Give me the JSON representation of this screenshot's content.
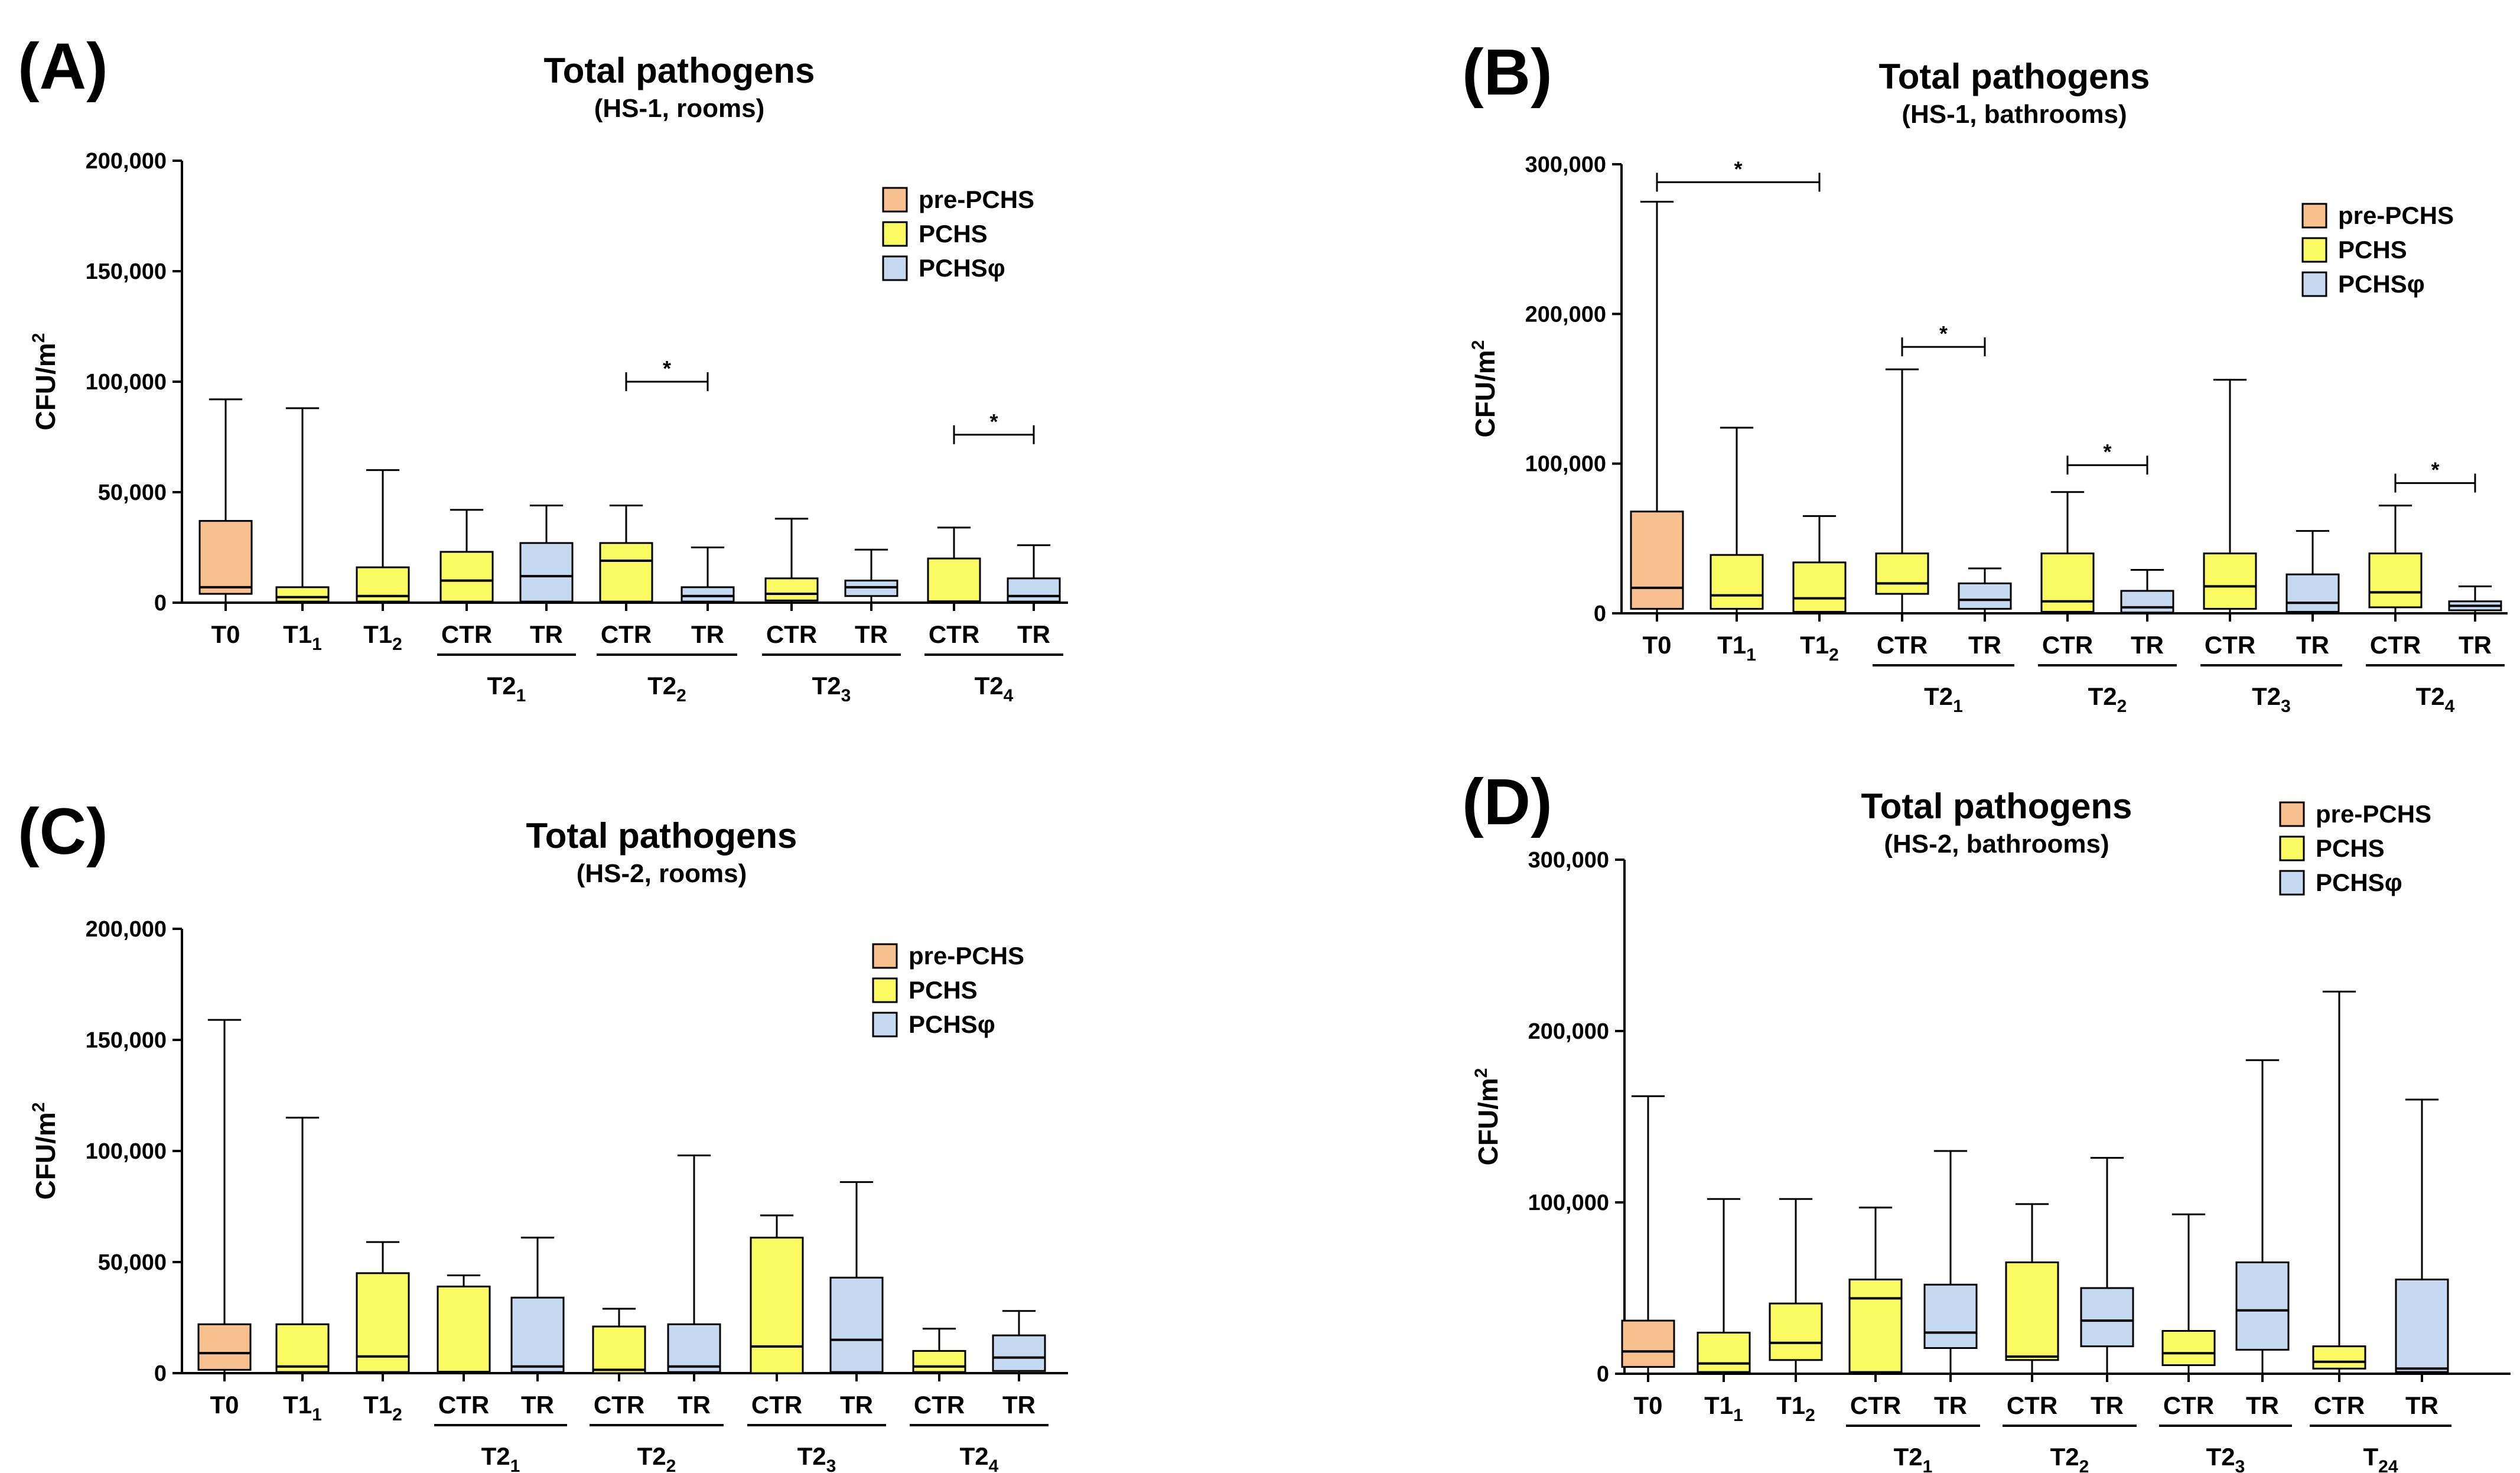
{
  "colors": {
    "pre-PCHS": "#f9c08f",
    "PCHS": "#fafa62",
    "PCHSphi": "#c5d9f1",
    "stroke": "#000000"
  },
  "legend": [
    {
      "key": "pre-PCHS",
      "label": "pre-PCHS"
    },
    {
      "key": "PCHS",
      "label": "PCHS"
    },
    {
      "key": "PCHSphi",
      "label": "PCHSφ"
    }
  ],
  "chart_data": [
    {
      "type": "boxplot",
      "panel": "(A)",
      "title": "Total pathogens",
      "subtitle": "(HS-1, rooms)",
      "ylabel": "CFU/m",
      "ylabel_sup": "2",
      "ylim": [
        0,
        200000
      ],
      "yticks": [
        0,
        50000,
        100000,
        150000,
        200000
      ],
      "ytick_labels": [
        "0",
        "50,000",
        "100,000",
        "150,000",
        "200,000"
      ],
      "categories": [
        {
          "label": "T0",
          "sub": ""
        },
        {
          "label": "T1",
          "sub": "1"
        },
        {
          "label": "T1",
          "sub": "2"
        },
        {
          "label": "CTR",
          "sub": ""
        },
        {
          "label": "TR",
          "sub": ""
        },
        {
          "label": "CTR",
          "sub": ""
        },
        {
          "label": "TR",
          "sub": ""
        },
        {
          "label": "CTR",
          "sub": ""
        },
        {
          "label": "TR",
          "sub": ""
        },
        {
          "label": "CTR",
          "sub": ""
        },
        {
          "label": "TR",
          "sub": ""
        }
      ],
      "groups": [
        {
          "label": "T2",
          "sub": "1",
          "from": 3,
          "to": 4
        },
        {
          "label": "T2",
          "sub": "2",
          "from": 5,
          "to": 6
        },
        {
          "label": "T2",
          "sub": "3",
          "from": 7,
          "to": 8
        },
        {
          "label": "T2",
          "sub": "4",
          "from": 9,
          "to": 10
        }
      ],
      "boxes": [
        {
          "series": "pre-PCHS",
          "min": 0,
          "q1": 4000,
          "median": 7000,
          "q3": 37000,
          "max": 92000
        },
        {
          "series": "PCHS",
          "min": 0,
          "q1": 500,
          "median": 2500,
          "q3": 7000,
          "max": 88000
        },
        {
          "series": "PCHS",
          "min": 0,
          "q1": 500,
          "median": 3000,
          "q3": 16000,
          "max": 60000
        },
        {
          "series": "PCHS",
          "min": 0,
          "q1": 500,
          "median": 10000,
          "q3": 23000,
          "max": 42000
        },
        {
          "series": "PCHSphi",
          "min": 0,
          "q1": 500,
          "median": 12000,
          "q3": 27000,
          "max": 44000
        },
        {
          "series": "PCHS",
          "min": 0,
          "q1": 500,
          "median": 19000,
          "q3": 27000,
          "max": 44000
        },
        {
          "series": "PCHSphi",
          "min": 0,
          "q1": 500,
          "median": 3000,
          "q3": 7000,
          "max": 25000
        },
        {
          "series": "PCHS",
          "min": 0,
          "q1": 1000,
          "median": 4000,
          "q3": 11000,
          "max": 38000
        },
        {
          "series": "PCHSphi",
          "min": 0,
          "q1": 3000,
          "median": 7000,
          "q3": 10000,
          "max": 24000
        },
        {
          "series": "PCHS",
          "min": 0,
          "q1": 0,
          "median": 500,
          "q3": 20000,
          "max": 34000
        },
        {
          "series": "PCHSphi",
          "min": 0,
          "q1": 500,
          "median": 3000,
          "q3": 11000,
          "max": 26000
        }
      ],
      "significance": [
        {
          "from": 5,
          "to": 6,
          "y": 100000,
          "label": "*"
        },
        {
          "from": 9,
          "to": 10,
          "y": 76000,
          "label": "*"
        }
      ],
      "legend_position": "top-right"
    },
    {
      "type": "boxplot",
      "panel": "(B)",
      "title": "Total pathogens",
      "subtitle": "(HS-1, bathrooms)",
      "ylabel": "CFU/m",
      "ylabel_sup": "2",
      "ylim": [
        0,
        300000
      ],
      "yticks": [
        0,
        100000,
        200000,
        300000
      ],
      "ytick_labels": [
        "0",
        "100,000",
        "200,000",
        "300,000"
      ],
      "categories": [
        {
          "label": "T0",
          "sub": ""
        },
        {
          "label": "T1",
          "sub": "1"
        },
        {
          "label": "T1",
          "sub": "2"
        },
        {
          "label": "CTR",
          "sub": ""
        },
        {
          "label": "TR",
          "sub": ""
        },
        {
          "label": "CTR",
          "sub": ""
        },
        {
          "label": "TR",
          "sub": ""
        },
        {
          "label": "CTR",
          "sub": ""
        },
        {
          "label": "TR",
          "sub": ""
        },
        {
          "label": "CTR",
          "sub": ""
        },
        {
          "label": "TR",
          "sub": ""
        }
      ],
      "groups": [
        {
          "label": "T2",
          "sub": "1",
          "from": 3,
          "to": 4
        },
        {
          "label": "T2",
          "sub": "2",
          "from": 5,
          "to": 6
        },
        {
          "label": "T2",
          "sub": "3",
          "from": 7,
          "to": 8
        },
        {
          "label": "T2",
          "sub": "4",
          "from": 9,
          "to": 10
        }
      ],
      "boxes": [
        {
          "series": "pre-PCHS",
          "min": 0,
          "q1": 3000,
          "median": 17000,
          "q3": 68000,
          "max": 275000
        },
        {
          "series": "PCHS",
          "min": 0,
          "q1": 3000,
          "median": 12000,
          "q3": 39000,
          "max": 124000
        },
        {
          "series": "PCHS",
          "min": 0,
          "q1": 1000,
          "median": 10000,
          "q3": 34000,
          "max": 65000
        },
        {
          "series": "PCHS",
          "min": 0,
          "q1": 13000,
          "median": 20000,
          "q3": 40000,
          "max": 163000
        },
        {
          "series": "PCHSphi",
          "min": 0,
          "q1": 3000,
          "median": 9000,
          "q3": 20000,
          "max": 30000
        },
        {
          "series": "PCHS",
          "min": 0,
          "q1": 1000,
          "median": 8000,
          "q3": 40000,
          "max": 81000
        },
        {
          "series": "PCHSphi",
          "min": 0,
          "q1": 500,
          "median": 4000,
          "q3": 15000,
          "max": 29000
        },
        {
          "series": "PCHS",
          "min": 0,
          "q1": 3000,
          "median": 18000,
          "q3": 40000,
          "max": 156000
        },
        {
          "series": "PCHSphi",
          "min": 0,
          "q1": 1000,
          "median": 7000,
          "q3": 26000,
          "max": 55000
        },
        {
          "series": "PCHS",
          "min": 0,
          "q1": 4000,
          "median": 14000,
          "q3": 40000,
          "max": 72000
        },
        {
          "series": "PCHSphi",
          "min": 0,
          "q1": 2000,
          "median": 5000,
          "q3": 8000,
          "max": 18000
        }
      ],
      "significance": [
        {
          "from": 0,
          "to": 2,
          "y": 288000,
          "label": "*"
        },
        {
          "from": 3,
          "to": 4,
          "y": 178000,
          "label": "*"
        },
        {
          "from": 5,
          "to": 6,
          "y": 99000,
          "label": "*"
        },
        {
          "from": 9,
          "to": 10,
          "y": 87000,
          "label": "*"
        }
      ],
      "legend_position": "top-right"
    },
    {
      "type": "boxplot",
      "panel": "(C)",
      "title": "Total pathogens",
      "subtitle": "(HS-2, rooms)",
      "ylabel": "CFU/m",
      "ylabel_sup": "2",
      "ylim": [
        0,
        200000
      ],
      "yticks": [
        0,
        50000,
        100000,
        150000,
        200000
      ],
      "ytick_labels": [
        "0",
        "50,000",
        "100,000",
        "150,000",
        "200,000"
      ],
      "categories": [
        {
          "label": "T0",
          "sub": ""
        },
        {
          "label": "T1",
          "sub": "1"
        },
        {
          "label": "T1",
          "sub": "2"
        },
        {
          "label": "CTR",
          "sub": ""
        },
        {
          "label": "TR",
          "sub": ""
        },
        {
          "label": "CTR",
          "sub": ""
        },
        {
          "label": "TR",
          "sub": ""
        },
        {
          "label": "CTR",
          "sub": ""
        },
        {
          "label": "TR",
          "sub": ""
        },
        {
          "label": "CTR",
          "sub": ""
        },
        {
          "label": "TR",
          "sub": ""
        }
      ],
      "groups": [
        {
          "label": "T2",
          "sub": "1",
          "from": 3,
          "to": 4
        },
        {
          "label": "T2",
          "sub": "2",
          "from": 5,
          "to": 6
        },
        {
          "label": "T2",
          "sub": "3",
          "from": 7,
          "to": 8
        },
        {
          "label": "T2",
          "sub": "4",
          "from": 9,
          "to": 10
        }
      ],
      "boxes": [
        {
          "series": "pre-PCHS",
          "min": 0,
          "q1": 1500,
          "median": 9000,
          "q3": 22000,
          "max": 159000
        },
        {
          "series": "PCHS",
          "min": 0,
          "q1": 500,
          "median": 3000,
          "q3": 22000,
          "max": 115000
        },
        {
          "series": "PCHS",
          "min": 0,
          "q1": 500,
          "median": 7500,
          "q3": 45000,
          "max": 59000
        },
        {
          "series": "PCHS",
          "min": 0,
          "q1": 0,
          "median": 500,
          "q3": 39000,
          "max": 44000
        },
        {
          "series": "PCHSphi",
          "min": 0,
          "q1": 500,
          "median": 3000,
          "q3": 34000,
          "max": 61000
        },
        {
          "series": "PCHS",
          "min": 0,
          "q1": 0,
          "median": 1500,
          "q3": 21000,
          "max": 29000
        },
        {
          "series": "PCHSphi",
          "min": 0,
          "q1": 500,
          "median": 3000,
          "q3": 22000,
          "max": 98000
        },
        {
          "series": "PCHS",
          "min": 0,
          "q1": 0,
          "median": 12000,
          "q3": 61000,
          "max": 71000
        },
        {
          "series": "PCHSphi",
          "min": 0,
          "q1": 500,
          "median": 15000,
          "q3": 43000,
          "max": 86000
        },
        {
          "series": "PCHS",
          "min": 0,
          "q1": 500,
          "median": 3000,
          "q3": 10000,
          "max": 20000
        },
        {
          "series": "PCHSphi",
          "min": 0,
          "q1": 1000,
          "median": 7000,
          "q3": 17000,
          "max": 28000
        }
      ],
      "significance": [],
      "legend_position": "top-right"
    },
    {
      "type": "boxplot",
      "panel": "(D)",
      "title": "Total pathogens",
      "subtitle": "(HS-2, bathrooms)",
      "ylabel": "CFU/m",
      "ylabel_sup": "2",
      "ylim": [
        0,
        300000
      ],
      "yticks": [
        0,
        100000,
        200000,
        300000
      ],
      "ytick_labels": [
        "0",
        "100,000",
        "200,000",
        "300,000"
      ],
      "categories": [
        {
          "label": "T0",
          "sub": ""
        },
        {
          "label": "T1",
          "sub": "1"
        },
        {
          "label": "T1",
          "sub": "2"
        },
        {
          "label": "CTR",
          "sub": ""
        },
        {
          "label": "TR",
          "sub": ""
        },
        {
          "label": "CTR",
          "sub": ""
        },
        {
          "label": "TR",
          "sub": ""
        },
        {
          "label": "CTR",
          "sub": ""
        },
        {
          "label": "TR",
          "sub": ""
        },
        {
          "label": "CTR",
          "sub": ""
        },
        {
          "label": "TR",
          "sub": ""
        }
      ],
      "groups": [
        {
          "label": "T2",
          "sub": "1",
          "from": 3,
          "to": 4
        },
        {
          "label": "T2",
          "sub": "2",
          "from": 5,
          "to": 6
        },
        {
          "label": "T2",
          "sub": "3",
          "from": 7,
          "to": 8
        },
        {
          "label": "T",
          "sub": "24",
          "from": 9,
          "to": 10
        }
      ],
      "boxes": [
        {
          "series": "pre-PCHS",
          "min": 0,
          "q1": 4000,
          "median": 13000,
          "q3": 31000,
          "max": 162000
        },
        {
          "series": "PCHS",
          "min": 0,
          "q1": 1000,
          "median": 6000,
          "q3": 24000,
          "max": 102000
        },
        {
          "series": "PCHS",
          "min": 0,
          "q1": 8000,
          "median": 18000,
          "q3": 41000,
          "max": 102000
        },
        {
          "series": "PCHS",
          "min": 0,
          "q1": 1000,
          "median": 44000,
          "q3": 55000,
          "max": 97000
        },
        {
          "series": "PCHSphi",
          "min": 0,
          "q1": 15000,
          "median": 24000,
          "q3": 52000,
          "max": 130000
        },
        {
          "series": "PCHS",
          "min": 0,
          "q1": 8000,
          "median": 10000,
          "q3": 65000,
          "max": 99000
        },
        {
          "series": "PCHSphi",
          "min": 0,
          "q1": 16000,
          "median": 31000,
          "q3": 50000,
          "max": 126000
        },
        {
          "series": "PCHS",
          "min": 0,
          "q1": 5000,
          "median": 12000,
          "q3": 25000,
          "max": 93000
        },
        {
          "series": "PCHSphi",
          "min": 0,
          "q1": 14000,
          "median": 37000,
          "q3": 65000,
          "max": 183000
        },
        {
          "series": "PCHS",
          "min": 0,
          "q1": 3000,
          "median": 7000,
          "q3": 16000,
          "max": 223000
        },
        {
          "series": "PCHSphi",
          "min": 0,
          "q1": 1000,
          "median": 3000,
          "q3": 55000,
          "max": 160000
        }
      ],
      "significance": [],
      "legend_position": "top-right"
    }
  ]
}
